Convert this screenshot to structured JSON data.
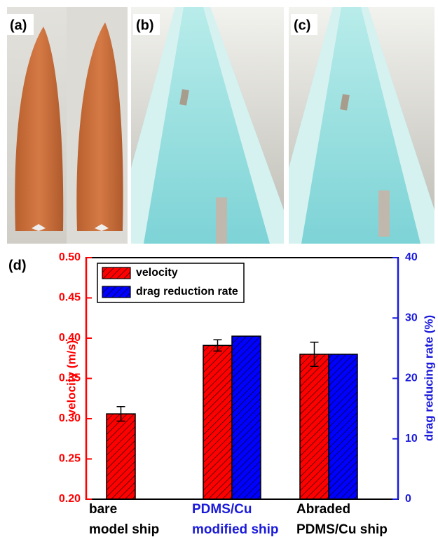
{
  "panels": [
    {
      "label": "(a)"
    },
    {
      "label": "(b)"
    },
    {
      "label": "(c)"
    }
  ],
  "chart_data": {
    "type": "bar",
    "panel_label": "(d)",
    "categories": [
      [
        "bare",
        "model ship"
      ],
      [
        "PDMS/Cu",
        "modified ship"
      ],
      [
        "Abraded",
        "PDMS/Cu ship"
      ]
    ],
    "category_colors": [
      "#000000",
      "#1a1adb",
      "#000000"
    ],
    "y_label": "velocity (m/s)",
    "y2_label": "drag reducing rate (%)",
    "y_color": "#ff0000",
    "y2_color": "#1a1adb",
    "ylim": [
      0.2,
      0.5
    ],
    "yticks": [
      {
        "value": 0.2,
        "label": "0.20"
      },
      0.25,
      {
        "value": 0.3,
        "label": "0.30"
      },
      0.35,
      {
        "value": 0.4,
        "label": "0.40"
      },
      0.45,
      {
        "value": 0.5,
        "label": "0.50"
      }
    ],
    "y2lim": [
      0,
      40
    ],
    "y2ticks": [
      0,
      10,
      20,
      30,
      40
    ],
    "hatch": true,
    "legend": "top-left",
    "series": [
      {
        "name": "velocity",
        "color": "#ff0000",
        "values": [
          0.306,
          0.391,
          0.38
        ],
        "errors": [
          0.009,
          0.007,
          0.015
        ]
      },
      {
        "name": "drag reduction rate",
        "color": "#0000ff",
        "axis": "y2",
        "values": [
          null,
          27,
          24
        ]
      }
    ]
  }
}
